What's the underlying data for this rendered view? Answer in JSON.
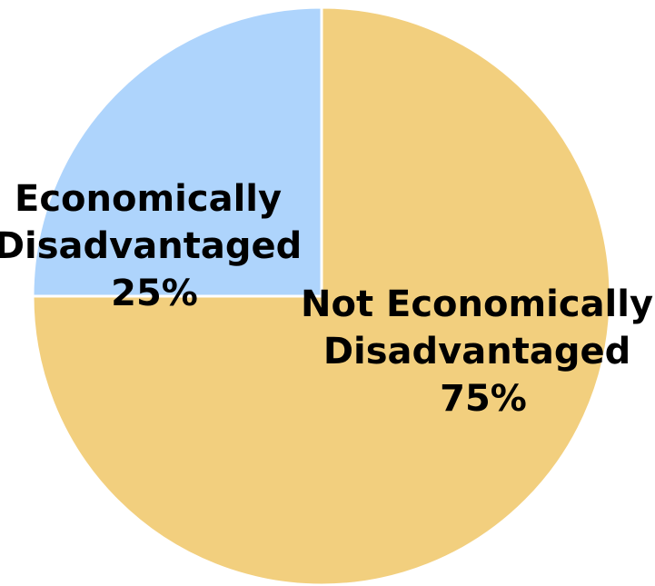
{
  "chart_data": {
    "type": "pie",
    "start_angle_deg": 0,
    "direction": "clockwise",
    "slices": [
      {
        "label": "Not Economically Disadvantaged",
        "percent_label": "75%",
        "value": 75,
        "color": "#F2CF7E"
      },
      {
        "label": "Economically Disadvantaged",
        "percent_label": "25%",
        "value": 25,
        "color": "#AED4FC"
      }
    ],
    "slice_border_color": "#FFFFFF"
  }
}
